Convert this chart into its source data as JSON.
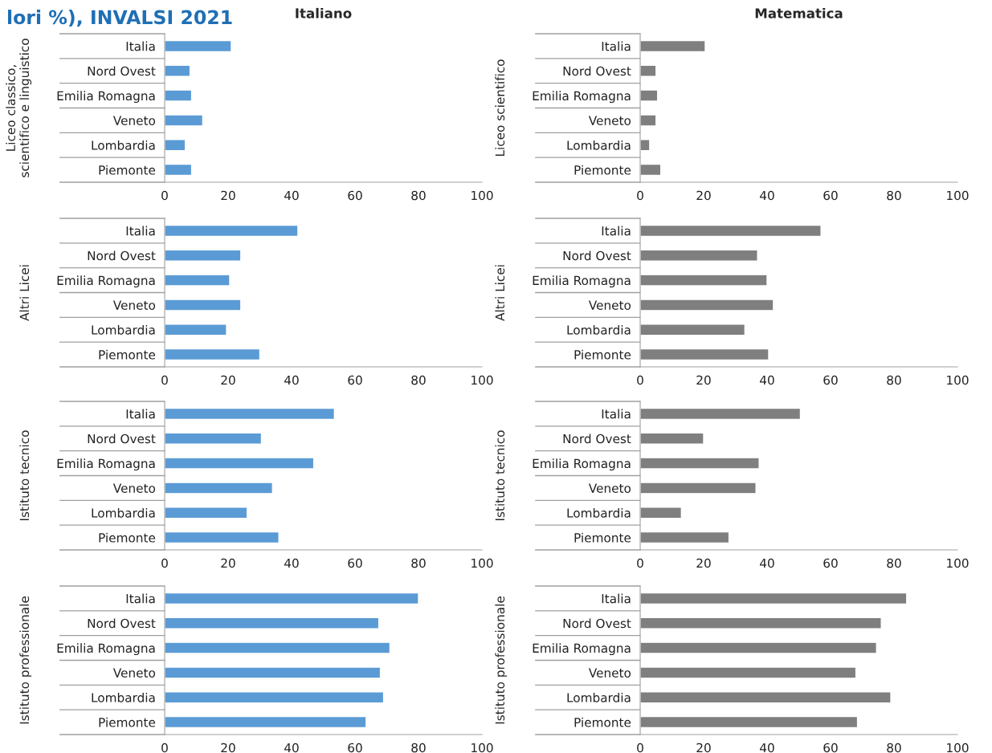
{
  "chart_data": [
    {
      "type": "bar",
      "orientation": "horizontal",
      "title": "Italiano",
      "annotations": [
        "lori %), INVALSI 2021"
      ],
      "ylabel": "Liceo classico,\nscientifico e linguistico",
      "categories": [
        "Italia",
        "Nord Ovest",
        "Emilia Romagna",
        "Veneto",
        "Lombardia",
        "Piemonte"
      ],
      "values": [
        21,
        8,
        8.5,
        12,
        6.5,
        8.5
      ],
      "color": "#5b9bd5",
      "xlim": [
        0,
        100
      ],
      "xticks": [
        0,
        20,
        40,
        60,
        80,
        100
      ],
      "grid": false
    },
    {
      "type": "bar",
      "orientation": "horizontal",
      "title": "Matematica",
      "ylabel": "Liceo scientifico",
      "categories": [
        "Italia",
        "Nord Ovest",
        "Emilia Romagna",
        "Veneto",
        "Lombardia",
        "Piemonte"
      ],
      "values": [
        20.5,
        5,
        5.5,
        5,
        3,
        6.5
      ],
      "color": "#7f7f7f",
      "xlim": [
        0,
        100
      ],
      "xticks": [
        0,
        20,
        40,
        60,
        80,
        100
      ],
      "grid": false
    },
    {
      "type": "bar",
      "orientation": "horizontal",
      "ylabel": "Altri Licei",
      "categories": [
        "Italia",
        "Nord Ovest",
        "Emilia Romagna",
        "Veneto",
        "Lombardia",
        "Piemonte"
      ],
      "values": [
        42,
        24,
        20.5,
        24,
        19.5,
        30
      ],
      "color": "#5b9bd5",
      "xlim": [
        0,
        100
      ],
      "xticks": [
        0,
        20,
        40,
        60,
        80,
        100
      ],
      "grid": false
    },
    {
      "type": "bar",
      "orientation": "horizontal",
      "ylabel": "Altri Licei",
      "categories": [
        "Italia",
        "Nord Ovest",
        "Emilia Romagna",
        "Veneto",
        "Lombardia",
        "Piemonte"
      ],
      "values": [
        57,
        37,
        40,
        42,
        33,
        40.5
      ],
      "color": "#7f7f7f",
      "xlim": [
        0,
        100
      ],
      "xticks": [
        0,
        20,
        40,
        60,
        80,
        100
      ],
      "grid": false
    },
    {
      "type": "bar",
      "orientation": "horizontal",
      "ylabel": "Istituto tecnico",
      "categories": [
        "Italia",
        "Nord Ovest",
        "Emilia Romagna",
        "Veneto",
        "Lombardia",
        "Piemonte"
      ],
      "values": [
        53.5,
        30.5,
        47,
        34,
        26,
        36
      ],
      "color": "#5b9bd5",
      "xlim": [
        0,
        100
      ],
      "xticks": [
        0,
        20,
        40,
        60,
        80,
        100
      ],
      "grid": false
    },
    {
      "type": "bar",
      "orientation": "horizontal",
      "ylabel": "Istituto tecnico",
      "categories": [
        "Italia",
        "Nord Ovest",
        "Emilia Romagna",
        "Veneto",
        "Lombardia",
        "Piemonte"
      ],
      "values": [
        50.5,
        20,
        37.5,
        36.5,
        13,
        28
      ],
      "color": "#7f7f7f",
      "xlim": [
        0,
        100
      ],
      "xticks": [
        0,
        20,
        40,
        60,
        80,
        100
      ],
      "grid": false
    },
    {
      "type": "bar",
      "orientation": "horizontal",
      "ylabel": "Istituto professionale",
      "categories": [
        "Italia",
        "Nord Ovest",
        "Emilia Romagna",
        "Veneto",
        "Lombardia",
        "Piemonte"
      ],
      "values": [
        80,
        67.5,
        71,
        68,
        69,
        63.5
      ],
      "color": "#5b9bd5",
      "xlim": [
        0,
        100
      ],
      "xticks": [
        0,
        20,
        40,
        60,
        80,
        100
      ],
      "grid": false
    },
    {
      "type": "bar",
      "orientation": "horizontal",
      "ylabel": "Istituto professionale",
      "categories": [
        "Italia",
        "Nord Ovest",
        "Emilia Romagna",
        "Veneto",
        "Lombardia",
        "Piemonte"
      ],
      "values": [
        84,
        76,
        74.5,
        68,
        79,
        68.5
      ],
      "color": "#7f7f7f",
      "xlim": [
        0,
        100
      ],
      "xticks": [
        0,
        20,
        40,
        60,
        80,
        100
      ],
      "grid": false
    }
  ]
}
